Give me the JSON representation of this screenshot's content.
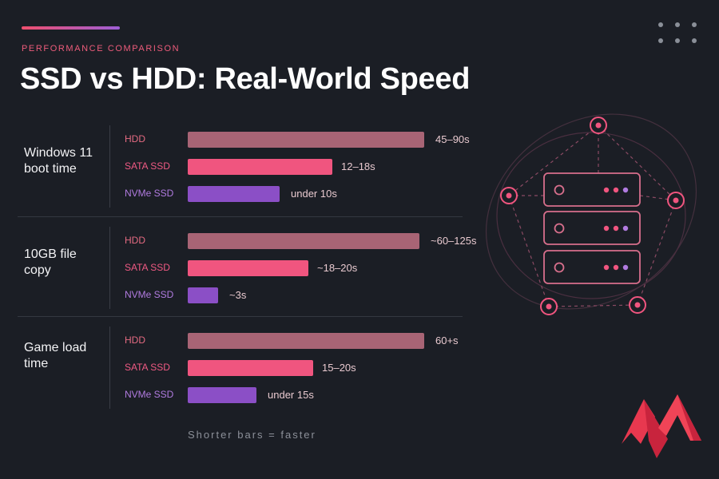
{
  "header": {
    "kicker": "PERFORMANCE COMPARISON",
    "title": "SSD vs HDD: Real-World Speed"
  },
  "footer": "Shorter bars = faster",
  "colors": {
    "background": "#1b1e25",
    "hdd": "#a86475",
    "sata": "#f0557f",
    "nvme": "#8b4fc6",
    "accent": "#ef4f6e"
  },
  "icons": [
    "menu-dots-icon",
    "server-network-illustration",
    "brand-logo-icon"
  ],
  "chart_data": {
    "type": "bar",
    "orientation": "horizontal",
    "title": "SSD vs HDD: Real-World Speed",
    "series_names": [
      "HDD",
      "SATA SSD",
      "NVMe SSD"
    ],
    "groups": [
      {
        "label": "Windows 11 boot time",
        "rows": [
          {
            "name": "HDD",
            "value_label": "45–90s",
            "value": 90
          },
          {
            "name": "SATA SSD",
            "value_label": "12–18s",
            "value": 18
          },
          {
            "name": "NVMe SSD",
            "value_label": "under 10s",
            "value": 10
          }
        ]
      },
      {
        "label": "10GB file copy",
        "rows": [
          {
            "name": "HDD",
            "value_label": "~60–125s",
            "value": 125
          },
          {
            "name": "SATA SSD",
            "value_label": "~18–20s",
            "value": 20
          },
          {
            "name": "NVMe SSD",
            "value_label": "~3s",
            "value": 3
          }
        ]
      },
      {
        "label": "Game load time",
        "rows": [
          {
            "name": "HDD",
            "value_label": "60+s",
            "value": 60
          },
          {
            "name": "SATA SSD",
            "value_label": "15–20s",
            "value": 20
          },
          {
            "name": "NVMe SSD",
            "value_label": "under 15s",
            "value": 15
          }
        ]
      }
    ],
    "bar_fractions": [
      [
        1.0,
        0.61,
        0.39
      ],
      [
        0.98,
        0.51,
        0.13
      ],
      [
        1.0,
        0.53,
        0.29
      ]
    ],
    "note": "Shorter bars = faster"
  }
}
